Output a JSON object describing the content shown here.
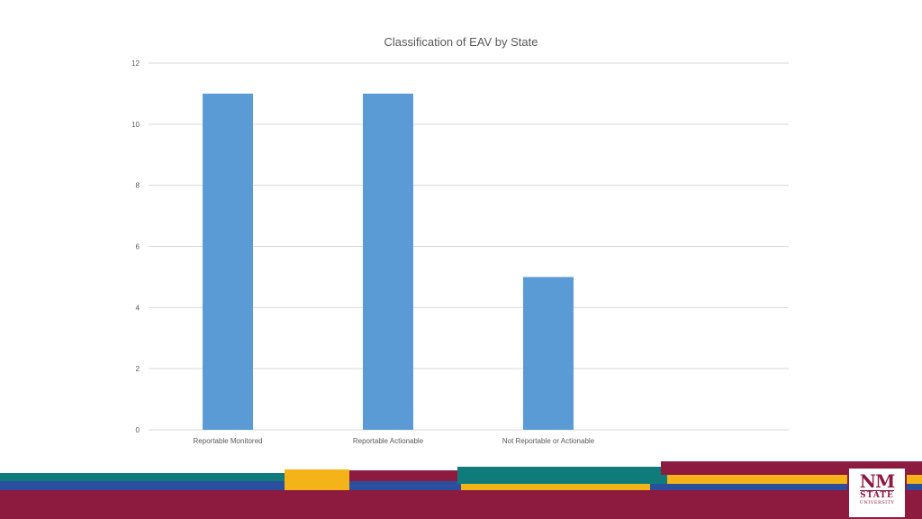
{
  "chart_data": {
    "type": "bar",
    "title": "Classification of EAV by State",
    "categories": [
      "Reportable Monitored",
      "Reportable Actionable",
      "Not Reportable or Actionable"
    ],
    "values": [
      11,
      11,
      5
    ],
    "xlabel": "",
    "ylabel": "",
    "ylim": [
      0,
      12
    ],
    "yticks": [
      0,
      2,
      4,
      6,
      8,
      10,
      12
    ],
    "grid": true,
    "bar_color": "#5b9bd5"
  },
  "footer": {
    "colors": {
      "teal": "#0f7b7b",
      "maroon": "#8c1b3f",
      "gold": "#f5b31a",
      "blue": "#2b4f9e"
    },
    "logo": {
      "line1": "NM",
      "line2": "STATE",
      "line3": "UNIVERSITY"
    }
  }
}
